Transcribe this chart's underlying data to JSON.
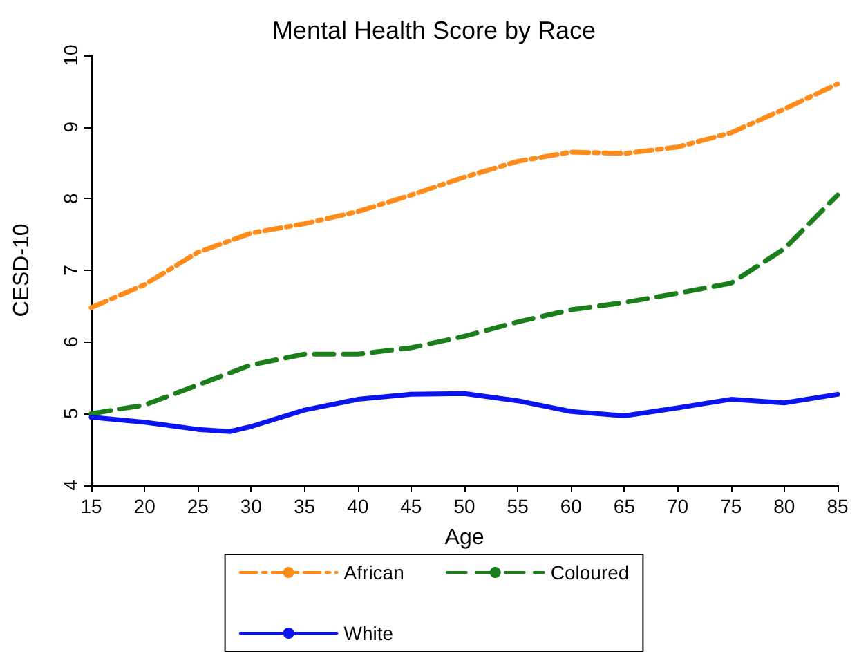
{
  "chart_data": {
    "type": "line",
    "title": "Mental Health Score by Race",
    "xlabel": "Age",
    "ylabel": "CESD-10",
    "xlim": [
      15,
      85
    ],
    "xticks": [
      15,
      20,
      25,
      30,
      35,
      40,
      45,
      50,
      55,
      60,
      65,
      70,
      75,
      80,
      85
    ],
    "ylim": [
      4,
      10
    ],
    "yticks": [
      4,
      5,
      6,
      7,
      8,
      9,
      10
    ],
    "grid": false,
    "legend": "bottom",
    "marker": "none",
    "series": [
      {
        "name": "African",
        "color": "#ff8c1a",
        "line_style": "dashdot",
        "x": [
          15,
          20,
          25,
          30,
          35,
          40,
          45,
          50,
          55,
          60,
          65,
          70,
          75,
          80,
          85
        ],
        "values": [
          6.48,
          6.8,
          7.25,
          7.52,
          7.65,
          7.82,
          8.05,
          8.3,
          8.52,
          8.65,
          8.63,
          8.72,
          8.92,
          9.25,
          9.6
        ]
      },
      {
        "name": "Coloured",
        "color": "#1a7f1a",
        "line_style": "dashed",
        "x": [
          15,
          20,
          25,
          30,
          35,
          40,
          45,
          50,
          55,
          60,
          65,
          70,
          75,
          80,
          85
        ],
        "values": [
          5.0,
          5.12,
          5.4,
          5.68,
          5.83,
          5.83,
          5.92,
          6.08,
          6.28,
          6.45,
          6.55,
          6.68,
          6.82,
          7.3,
          8.05
        ]
      },
      {
        "name": "White",
        "color": "#0a14f0",
        "line_style": "solid",
        "x": [
          15,
          20,
          25,
          28,
          30,
          35,
          40,
          45,
          50,
          55,
          60,
          65,
          70,
          75,
          80,
          85
        ],
        "values": [
          4.95,
          4.88,
          4.78,
          4.75,
          4.82,
          5.05,
          5.2,
          5.27,
          5.28,
          5.18,
          5.03,
          4.97,
          5.08,
          5.2,
          5.15,
          5.27
        ]
      }
    ]
  }
}
